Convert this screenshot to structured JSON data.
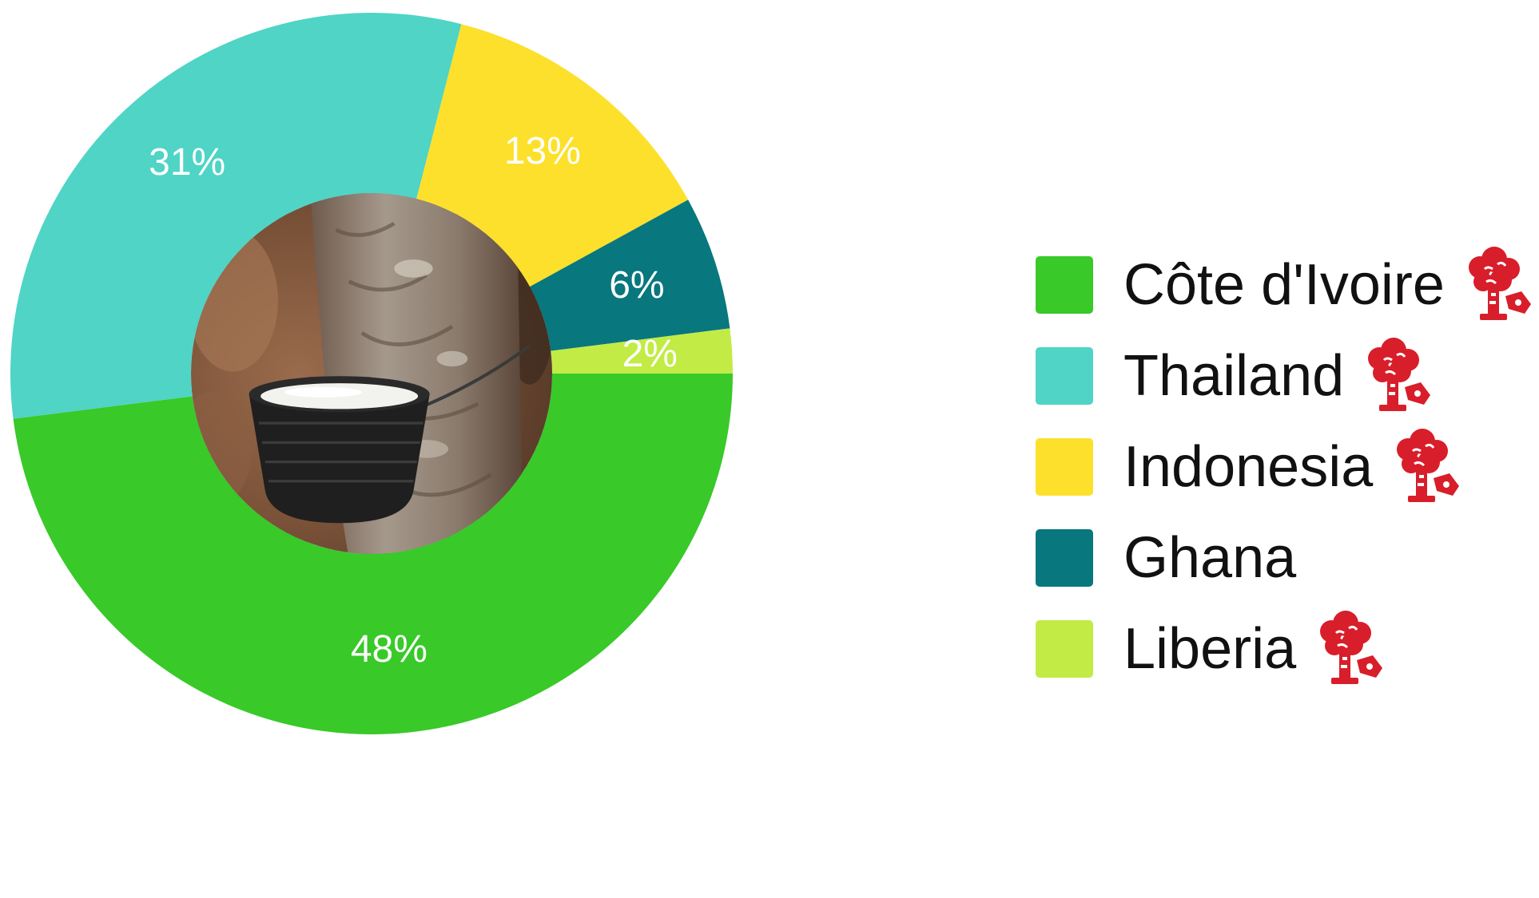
{
  "chart_data": {
    "type": "pie",
    "variant": "donut",
    "categories": [
      "Côte d'Ivoire",
      "Thailand",
      "Indonesia",
      "Ghana",
      "Liberia"
    ],
    "values": [
      48,
      31,
      13,
      6,
      2
    ],
    "value_labels": [
      "48%",
      "31%",
      "13%",
      "6%",
      "2%"
    ],
    "colors": [
      "#39c929",
      "#4fd4c6",
      "#fde02b",
      "#08777e",
      "#c2eb46"
    ],
    "legend_placement": "right",
    "center_image": "rubber-tapping-cup-on-tree-photo"
  },
  "legend": {
    "items": [
      {
        "label": "Côte d'Ivoire",
        "color": "#39c929",
        "icon": "rubber-tree-tapping-icon"
      },
      {
        "label": "Thailand",
        "color": "#4fd4c6",
        "icon": "rubber-tree-tapping-icon"
      },
      {
        "label": "Indonesia",
        "color": "#fde02b",
        "icon": "rubber-tree-tapping-icon"
      },
      {
        "label": "Ghana",
        "color": "#08777e",
        "icon": ""
      },
      {
        "label": "Liberia",
        "color": "#c2eb46",
        "icon": "rubber-tree-tapping-icon"
      }
    ],
    "icon_color": "#d81e2a"
  }
}
